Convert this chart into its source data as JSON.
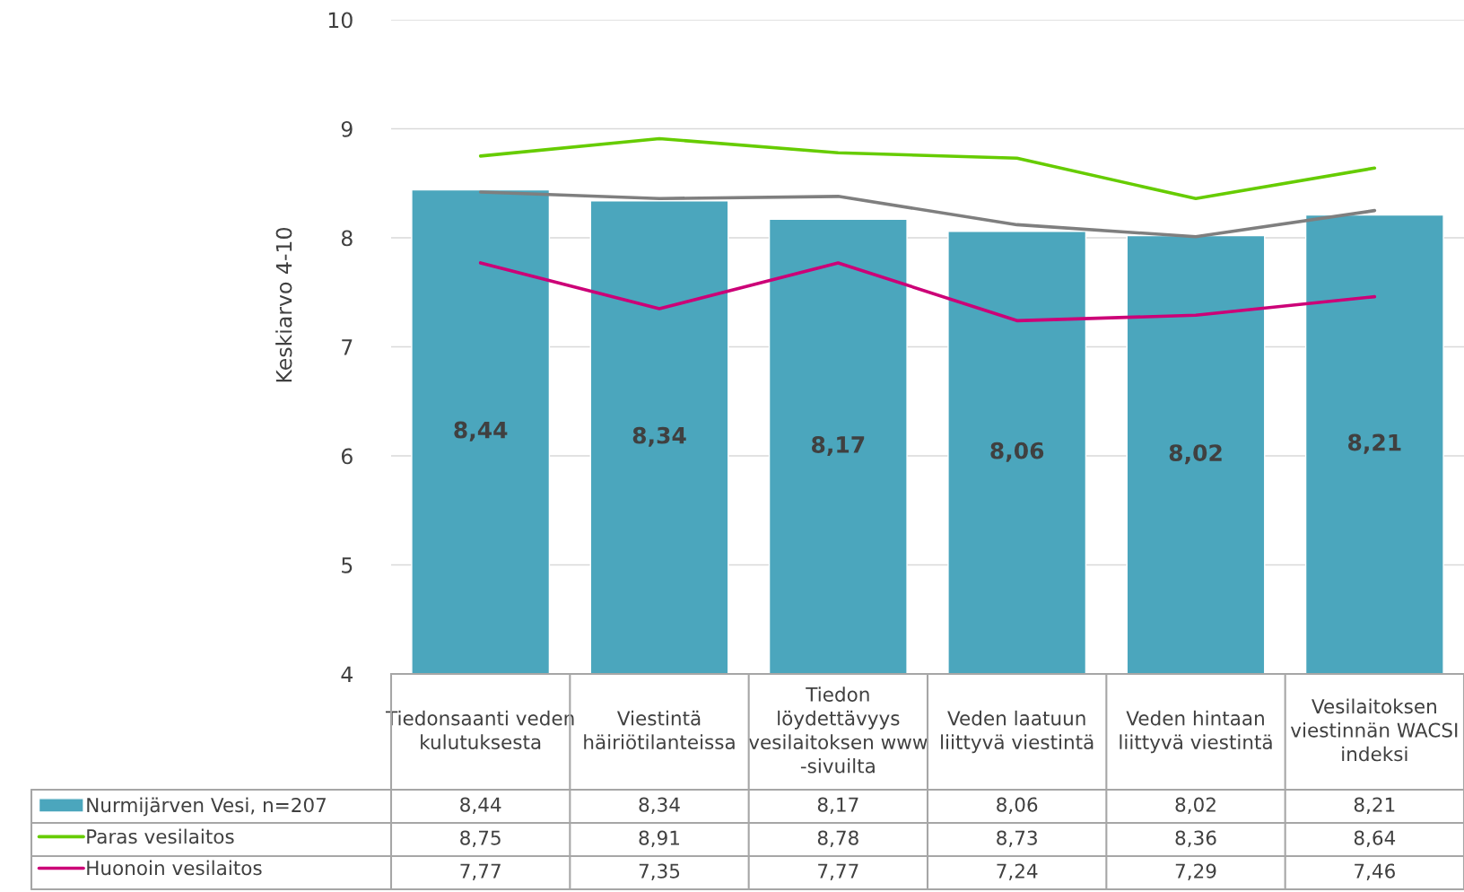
{
  "chart_data": {
    "type": "bar",
    "ylabel": "Keskiarvo 4-10",
    "categories": [
      "Tiedonsaanti veden kulutuksesta",
      "Viestintä häiriötilanteissa",
      "Tiedon löydettävyys vesilaitoksen www -sivuilta",
      "Veden laatuun liittyvä viestintä",
      "Veden hintaan liittyvä viestintä",
      "Vesilaitoksen viestinnän WACSI indeksi"
    ],
    "series": [
      {
        "name": "Nurmijärven Vesi, n=207",
        "color": "#4ba6bd",
        "values": [
          8.44,
          8.34,
          8.17,
          8.06,
          8.02,
          8.21
        ],
        "value_labels": [
          "8,44",
          "8,34",
          "8,17",
          "8,06",
          "8,02",
          "8,21"
        ]
      },
      {
        "name": "Paras vesilaitos",
        "type": "line",
        "color": "#66cc00",
        "values": [
          8.75,
          8.91,
          8.78,
          8.73,
          8.36,
          8.64
        ],
        "value_labels": [
          "8,75",
          "8,91",
          "8,78",
          "8,73",
          "8,36",
          "8,64"
        ]
      },
      {
        "name": "Huonoin vesilaitos",
        "type": "line",
        "color": "#cc0077",
        "values": [
          7.77,
          7.35,
          7.77,
          7.24,
          7.29,
          7.46
        ],
        "value_labels": [
          "7,77",
          "7,35",
          "7,77",
          "7,24",
          "7,29",
          "7,46"
        ]
      },
      {
        "type": "line",
        "color": "#7f7f7f",
        "values": [
          8.42,
          8.36,
          8.38,
          8.12,
          8.01,
          8.25
        ]
      }
    ],
    "ylim": [
      4,
      10
    ],
    "yticks": [
      4,
      5,
      6,
      7,
      8,
      9,
      10
    ],
    "grid": "y",
    "legend": "bottom"
  }
}
